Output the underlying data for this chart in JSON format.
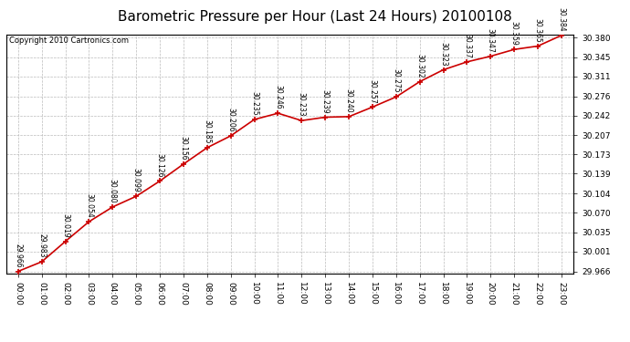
{
  "title": "Barometric Pressure per Hour (Last 24 Hours) 20100108",
  "copyright": "Copyright 2010 Cartronics.com",
  "hours": [
    "00:00",
    "01:00",
    "02:00",
    "03:00",
    "04:00",
    "05:00",
    "06:00",
    "07:00",
    "08:00",
    "09:00",
    "10:00",
    "11:00",
    "12:00",
    "13:00",
    "14:00",
    "15:00",
    "16:00",
    "17:00",
    "18:00",
    "19:00",
    "20:00",
    "21:00",
    "22:00",
    "23:00"
  ],
  "values": [
    29.966,
    29.983,
    30.019,
    30.054,
    30.08,
    30.099,
    30.126,
    30.156,
    30.185,
    30.206,
    30.235,
    30.246,
    30.233,
    30.239,
    30.24,
    30.257,
    30.275,
    30.302,
    30.323,
    30.337,
    30.347,
    30.359,
    30.365,
    30.384
  ],
  "ylim_min": 29.962,
  "ylim_max": 30.384,
  "yticks": [
    29.966,
    30.001,
    30.035,
    30.07,
    30.104,
    30.139,
    30.173,
    30.207,
    30.242,
    30.276,
    30.311,
    30.345,
    30.38
  ],
  "line_color": "#cc0000",
  "marker_color": "#cc0000",
  "bg_color": "#ffffff",
  "grid_color": "#bbbbbb",
  "border_color": "#000000",
  "title_fontsize": 11,
  "label_fontsize": 6.5,
  "copyright_fontsize": 6,
  "annot_fontsize": 5.5
}
